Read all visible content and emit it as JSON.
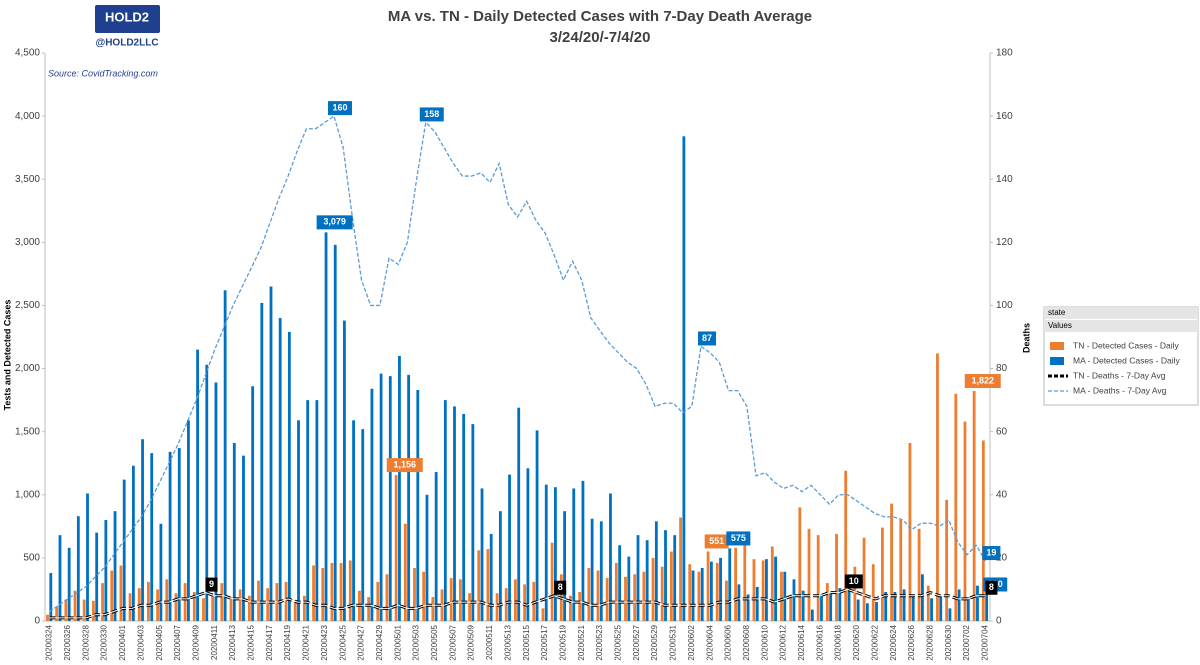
{
  "logo": "HOLD2",
  "handle": "@HOLD2LLC",
  "chart_data": {
    "type": "bar-line",
    "title": "MA vs. TN - Daily Detected Cases with 7-Day Death Average",
    "subtitle": "3/24/20/-7/4/20",
    "annotation": "Source: CovidTracking.com",
    "ylabel": "Tests and Detected Cases",
    "y2label": "Deaths",
    "legend_title": "state",
    "legend_subtitle": "Values",
    "categories": [
      "20200324",
      null,
      "20200326",
      null,
      "20200328",
      null,
      "20200330",
      null,
      "20200401",
      null,
      "20200403",
      null,
      "20200405",
      null,
      "20200407",
      null,
      "20200409",
      null,
      "20200411",
      null,
      "20200413",
      null,
      "20200415",
      null,
      "20200417",
      null,
      "20200419",
      null,
      "20200421",
      null,
      "20200423",
      null,
      "20200425",
      null,
      "20200427",
      null,
      "20200429",
      null,
      "20200501",
      null,
      "20200503",
      null,
      "20200505",
      null,
      "20200507",
      null,
      "20200509",
      null,
      "20200511",
      null,
      "20200513",
      null,
      "20200515",
      null,
      "20200517",
      null,
      "20200519",
      null,
      "20200521",
      null,
      "20200523",
      null,
      "20200525",
      null,
      "20200527",
      null,
      "20200529",
      null,
      "20200531",
      null,
      "20200602",
      null,
      "20200604",
      null,
      "20200606",
      null,
      "20200608",
      null,
      "20200610",
      null,
      "20200612",
      null,
      "20200614",
      null,
      "20200616",
      null,
      "20200618",
      null,
      "20200620",
      null,
      "20200622",
      null,
      "20200624",
      null,
      "20200626",
      null,
      "20200628",
      null,
      "20200630",
      null,
      "20200702",
      null,
      "20200704"
    ],
    "ylim": [
      0,
      4500
    ],
    "yticks": [
      0,
      500,
      {
        "value": 1000,
        "label": "1,000"
      },
      {
        "value": 1500,
        "label": "1,500"
      },
      {
        "value": 2000,
        "label": "2,000"
      },
      {
        "value": 2500,
        "label": "2,500"
      },
      {
        "value": 3000,
        "label": "3,000"
      },
      {
        "value": 3500,
        "label": "3,500"
      },
      {
        "value": 4000,
        "label": "4,000"
      },
      {
        "value": 4500,
        "label": "4,500"
      }
    ],
    "y2lim": [
      0,
      180
    ],
    "y2ticks": [
      0,
      20,
      40,
      60,
      80,
      100,
      120,
      140,
      160,
      180
    ],
    "series": [
      {
        "name": "TN - Detected Cases - Daily",
        "kind": "bar",
        "color": "#ed7d31",
        "values": [
          50,
          110,
          170,
          240,
          170,
          160,
          300,
          400,
          440,
          220,
          260,
          310,
          250,
          330,
          220,
          300,
          230,
          180,
          200,
          300,
          190,
          250,
          200,
          320,
          260,
          300,
          310,
          160,
          200,
          440,
          420,
          460,
          460,
          480,
          240,
          190,
          310,
          370,
          1156,
          770,
          420,
          390,
          190,
          250,
          340,
          330,
          220,
          560,
          570,
          220,
          260,
          330,
          290,
          310,
          100,
          620,
          370,
          200,
          230,
          420,
          400,
          340,
          460,
          350,
          370,
          390,
          500,
          430,
          550,
          820,
          450,
          390,
          551,
          460,
          320,
          580,
          650,
          490,
          480,
          590,
          390,
          200,
          900,
          730,
          680,
          300,
          690,
          1190,
          430,
          660,
          450,
          740,
          930,
          800,
          1410,
          730,
          280,
          2120,
          960,
          1800,
          1580,
          1822,
          1430
        ],
        "value_labels": [
          null,
          null,
          null,
          null,
          null,
          null,
          null,
          null,
          null,
          null,
          null,
          null,
          null,
          null,
          null,
          null,
          null,
          null,
          null,
          null,
          null,
          null,
          null,
          null,
          null,
          null,
          null,
          null,
          null,
          null,
          null,
          null,
          null,
          null,
          null,
          null,
          null,
          null,
          "1,156",
          null,
          null,
          null,
          null,
          null,
          null,
          null,
          null,
          null,
          null,
          null,
          null,
          null,
          null,
          null,
          null,
          null,
          null,
          null,
          null,
          null,
          null,
          null,
          null,
          null,
          null,
          null,
          null,
          null,
          null,
          null,
          null,
          null,
          "551",
          null,
          null,
          null,
          null,
          null,
          null,
          null,
          null,
          null,
          null,
          null,
          null,
          null,
          null,
          null,
          null,
          null,
          null,
          null,
          null,
          null,
          null,
          null,
          null,
          null,
          null,
          null,
          null,
          "1,822",
          null
        ]
      },
      {
        "name": "MA - Detected Cases - Daily",
        "kind": "bar",
        "color": "#0070c0",
        "values": [
          380,
          680,
          580,
          830,
          1010,
          700,
          800,
          870,
          1120,
          1230,
          1440,
          1330,
          770,
          1340,
          1370,
          1590,
          2150,
          2030,
          1890,
          2620,
          1410,
          1310,
          1860,
          2520,
          2650,
          2400,
          2290,
          1590,
          1750,
          1750,
          3079,
          2980,
          2380,
          1590,
          1520,
          1840,
          1960,
          1940,
          2100,
          1950,
          1830,
          1000,
          1180,
          1750,
          1700,
          1640,
          1560,
          1050,
          690,
          870,
          1160,
          1690,
          1210,
          1510,
          1080,
          1060,
          870,
          1050,
          1110,
          810,
          790,
          1010,
          600,
          510,
          680,
          640,
          790,
          720,
          680,
          3840,
          400,
          420,
          470,
          500,
          575,
          290,
          210,
          270,
          490,
          510,
          390,
          330,
          240,
          90,
          210,
          220,
          260,
          310,
          170,
          140,
          150,
          230,
          230,
          250,
          200,
          370,
          180,
          200,
          100,
          250,
          190,
          280,
          210
        ],
        "value_labels": [
          null,
          null,
          null,
          null,
          null,
          null,
          null,
          null,
          null,
          null,
          null,
          null,
          null,
          null,
          null,
          null,
          null,
          null,
          null,
          null,
          null,
          null,
          null,
          null,
          null,
          null,
          null,
          null,
          null,
          null,
          "3,079",
          null,
          null,
          null,
          null,
          null,
          null,
          null,
          null,
          null,
          null,
          null,
          null,
          null,
          null,
          null,
          null,
          null,
          null,
          null,
          null,
          null,
          null,
          null,
          null,
          null,
          null,
          null,
          null,
          null,
          null,
          null,
          null,
          null,
          null,
          null,
          null,
          null,
          null,
          null,
          null,
          null,
          null,
          null,
          "575",
          null,
          null,
          null,
          null,
          null,
          null,
          null,
          null,
          null,
          null,
          null,
          null,
          null,
          null,
          null,
          null,
          null,
          null,
          null,
          null,
          null,
          null,
          null,
          null,
          null,
          null,
          null,
          "210"
        ]
      },
      {
        "name": "TN - Deaths - 7-Day Avg",
        "kind": "line",
        "axis": "y2",
        "color": "#000000",
        "values": [
          1,
          1,
          1,
          1,
          1,
          2,
          2,
          3,
          4,
          4,
          5,
          5,
          6,
          6,
          7,
          7,
          8,
          9,
          8,
          8,
          7,
          7,
          6,
          6,
          6,
          6,
          7,
          6,
          6,
          5,
          5,
          4,
          4,
          5,
          5,
          5,
          4,
          4,
          5,
          4,
          4,
          5,
          5,
          5,
          6,
          6,
          6,
          6,
          5,
          5,
          6,
          6,
          5,
          6,
          7,
          8,
          7,
          6,
          6,
          5,
          5,
          6,
          6,
          6,
          6,
          6,
          6,
          5,
          5,
          5,
          5,
          5,
          5,
          6,
          6,
          7,
          7,
          7,
          7,
          6,
          7,
          8,
          8,
          8,
          8,
          9,
          9,
          10,
          9,
          8,
          7,
          8,
          8,
          8,
          8,
          8,
          9,
          8,
          8,
          7,
          7,
          8,
          8
        ],
        "value_labels": [
          null,
          null,
          null,
          null,
          null,
          null,
          null,
          null,
          null,
          null,
          null,
          null,
          null,
          null,
          null,
          null,
          null,
          "9",
          null,
          null,
          null,
          null,
          null,
          null,
          null,
          null,
          null,
          null,
          null,
          null,
          null,
          null,
          null,
          null,
          null,
          null,
          null,
          null,
          null,
          null,
          null,
          null,
          null,
          null,
          null,
          null,
          null,
          null,
          null,
          null,
          null,
          null,
          null,
          null,
          null,
          "8",
          null,
          null,
          null,
          null,
          null,
          null,
          null,
          null,
          null,
          null,
          null,
          null,
          null,
          null,
          null,
          null,
          null,
          null,
          null,
          null,
          null,
          null,
          null,
          null,
          null,
          null,
          null,
          null,
          null,
          null,
          null,
          "10",
          null,
          null,
          null,
          null,
          null,
          null,
          null,
          null,
          null,
          null,
          null,
          null,
          null,
          null,
          "8"
        ]
      },
      {
        "name": "MA - Deaths - 7-Day Avg",
        "kind": "line",
        "axis": "y2",
        "color": "#5b9bd5",
        "values": [
          3,
          5,
          7,
          9,
          11,
          14,
          17,
          21,
          25,
          29,
          33,
          38,
          44,
          50,
          56,
          63,
          70,
          78,
          86,
          93,
          100,
          106,
          112,
          118,
          126,
          134,
          141,
          149,
          156,
          156,
          158,
          160,
          150,
          128,
          108,
          100,
          100,
          115,
          113,
          120,
          140,
          158,
          155,
          150,
          145,
          141,
          141,
          142,
          139,
          145,
          132,
          128,
          133,
          127,
          123,
          116,
          108,
          114,
          108,
          96,
          92,
          88,
          85,
          82,
          80,
          75,
          68,
          69,
          69,
          66,
          68,
          87,
          85,
          82,
          73,
          73,
          68,
          46,
          47,
          44,
          42,
          43,
          41,
          43,
          40,
          37,
          40,
          40,
          38,
          36,
          34,
          33,
          33,
          32,
          29,
          31,
          31,
          30,
          32,
          25,
          21,
          24,
          19
        ],
        "value_labels": [
          null,
          null,
          null,
          null,
          null,
          null,
          null,
          null,
          null,
          null,
          null,
          null,
          null,
          null,
          null,
          null,
          null,
          null,
          null,
          null,
          null,
          null,
          null,
          null,
          null,
          null,
          null,
          null,
          null,
          null,
          null,
          "160",
          null,
          null,
          null,
          null,
          null,
          null,
          null,
          null,
          null,
          "158",
          null,
          null,
          null,
          null,
          null,
          null,
          null,
          null,
          null,
          null,
          null,
          null,
          null,
          null,
          null,
          null,
          null,
          null,
          null,
          null,
          null,
          null,
          null,
          null,
          null,
          null,
          null,
          null,
          null,
          "87",
          null,
          null,
          null,
          null,
          null,
          null,
          null,
          null,
          null,
          null,
          null,
          null,
          null,
          null,
          null,
          null,
          null,
          null,
          null,
          null,
          null,
          null,
          null,
          null,
          null,
          null,
          null,
          null,
          null,
          null,
          "19"
        ]
      }
    ]
  }
}
